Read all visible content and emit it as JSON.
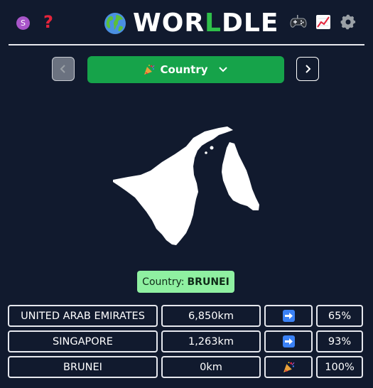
{
  "header": {
    "user_initial": "S",
    "help_icon": "question-mark-icon",
    "title_parts": [
      "WOR",
      "L",
      "DLE"
    ],
    "globe_icon": "globe-icon",
    "gamepad_icon": "gamepad-icon",
    "stats_icon": "stats-chart-icon",
    "settings_icon": "gear-icon",
    "accent_color": "#2fbf4a"
  },
  "mode_bar": {
    "prev_icon": "chevron-left-icon",
    "next_icon": "chevron-right-icon",
    "selected_mode": "Country",
    "mode_icon": "party-popper-icon",
    "dropdown_icon": "chevron-down-icon",
    "button_color": "#16a34a"
  },
  "map": {
    "silhouette_icon": "country-silhouette-brunei"
  },
  "answer": {
    "label": "Country:",
    "value": "BRUNEI",
    "background_color": "#8ff0a1"
  },
  "guesses": [
    {
      "country": "UNITED ARAB EMIRATES",
      "distance": "6,850km",
      "direction_icon": "arrow-right-icon",
      "proximity": "65%"
    },
    {
      "country": "SINGAPORE",
      "distance": "1,263km",
      "direction_icon": "arrow-right-icon",
      "proximity": "93%"
    },
    {
      "country": "BRUNEI",
      "distance": "0km",
      "direction_icon": "party-popper-icon",
      "proximity": "100%"
    }
  ]
}
